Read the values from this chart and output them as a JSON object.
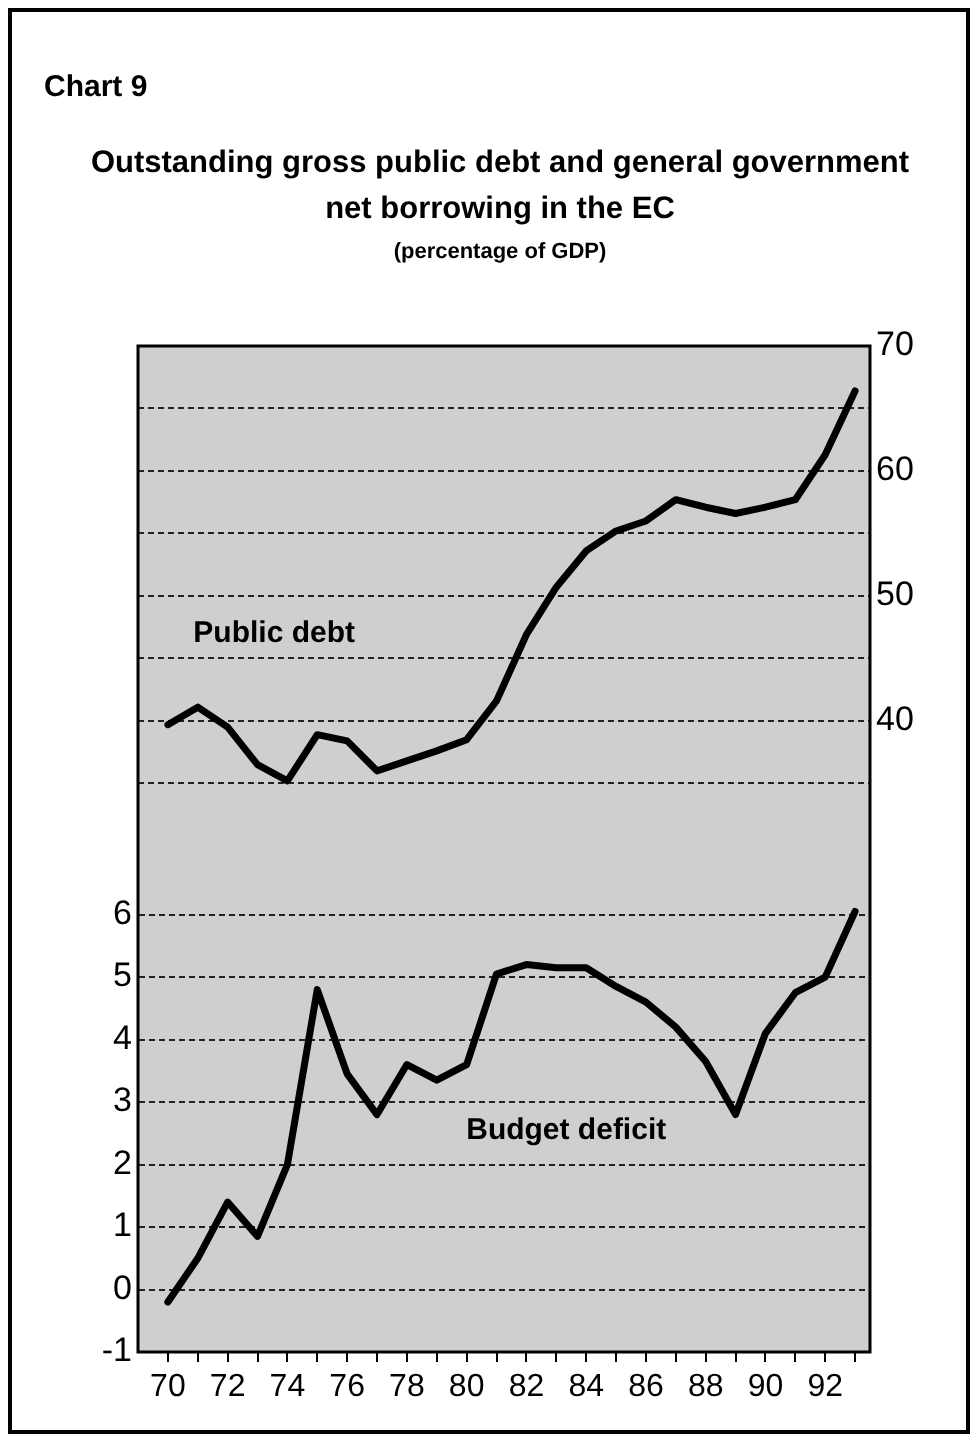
{
  "chart_data": {
    "type": "line",
    "title": "Outstanding gross public debt and general government net borrowing in the EC",
    "subtitle": "(percentage of GDP)",
    "annotations": [
      "Chart 9"
    ],
    "x": [
      70,
      71,
      72,
      73,
      74,
      75,
      76,
      77,
      78,
      79,
      80,
      81,
      82,
      83,
      84,
      85,
      86,
      87,
      88,
      89,
      90,
      91,
      92,
      93
    ],
    "series": [
      {
        "name": "Public debt",
        "color": "#000000",
        "axis": "y2",
        "values": [
          39.7,
          41.1,
          39.5,
          36.5,
          35.2,
          38.9,
          38.4,
          36.0,
          36.8,
          37.6,
          38.5,
          41.6,
          46.9,
          50.7,
          53.6,
          55.2,
          56.0,
          57.7,
          57.1,
          56.6,
          57.1,
          57.7,
          61.3,
          66.4
        ]
      },
      {
        "name": "Budget deficit",
        "color": "#000000",
        "values": [
          -0.2,
          0.5,
          1.4,
          0.85,
          2.0,
          4.8,
          3.45,
          2.8,
          3.6,
          3.35,
          3.6,
          5.05,
          5.2,
          5.15,
          5.15,
          4.85,
          4.6,
          4.2,
          3.65,
          2.8,
          4.1,
          4.75,
          5.0,
          6.05
        ]
      }
    ],
    "xlim": [
      69,
      93.5
    ],
    "xticks": [
      70,
      {
        "value": 71,
        "label": null
      },
      72,
      {
        "value": 73,
        "label": null
      },
      74,
      {
        "value": 75,
        "label": null
      },
      76,
      {
        "value": 77,
        "label": null
      },
      78,
      {
        "value": 79,
        "label": null
      },
      80,
      {
        "value": 81,
        "label": null
      },
      82,
      {
        "value": 83,
        "label": null
      },
      84,
      {
        "value": 85,
        "label": null
      },
      86,
      {
        "value": 87,
        "label": null
      },
      88,
      {
        "value": 89,
        "label": null
      },
      90,
      {
        "value": 91,
        "label": null
      },
      92,
      {
        "value": 93,
        "label": null
      }
    ],
    "ylim": [
      -1,
      15.1
    ],
    "yticks": [
      -1,
      0,
      1,
      2,
      3,
      4,
      5,
      6
    ],
    "y2lim": [
      -10.5,
      70
    ],
    "y2ticks": [
      {
        "value": 35,
        "label": null
      },
      40,
      {
        "value": 45,
        "label": null
      },
      50,
      {
        "value": 55,
        "label": null
      },
      60,
      {
        "value": 65,
        "label": null
      },
      70
    ],
    "grid": "y",
    "legend": false,
    "marker": "none",
    "line_style": "solid"
  }
}
